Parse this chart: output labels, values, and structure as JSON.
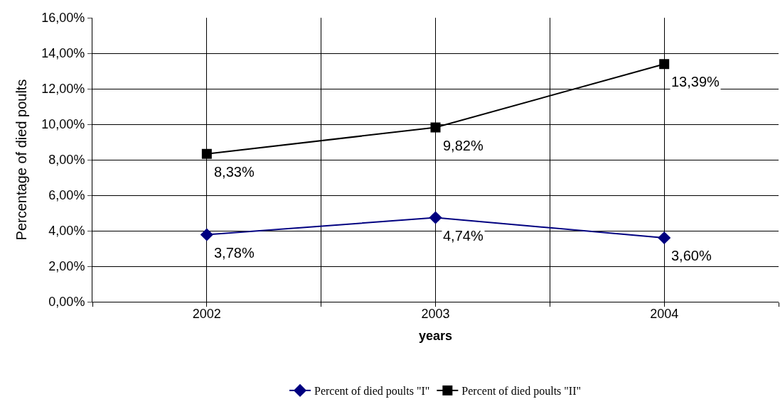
{
  "chart_data": {
    "type": "line",
    "xlabel": "years",
    "ylabel": "Percentage of died poults",
    "categories": [
      "2002",
      "2003",
      "2004"
    ],
    "series": [
      {
        "name": "Percent of died poults \"I\"",
        "color": "#000080",
        "marker": "diamond",
        "values": [
          3.78,
          4.74,
          3.6
        ],
        "value_labels": [
          "3,78%",
          "4,74%",
          "3,60%"
        ]
      },
      {
        "name": "Percent of died poults \"II\"",
        "color": "#000000",
        "marker": "square",
        "values": [
          8.33,
          9.82,
          13.39
        ],
        "value_labels": [
          "8,33%",
          "9,82%",
          "13,39%"
        ]
      }
    ],
    "ylim": [
      0,
      16
    ],
    "yticks": [
      {
        "value": 0,
        "label": "0,00%"
      },
      {
        "value": 2,
        "label": "2,00%"
      },
      {
        "value": 4,
        "label": "4,00%"
      },
      {
        "value": 6,
        "label": "6,00%"
      },
      {
        "value": 8,
        "label": "8,00%"
      },
      {
        "value": 10,
        "label": "10,00%"
      },
      {
        "value": 12,
        "label": "12,00%"
      },
      {
        "value": 14,
        "label": "14,00%"
      },
      {
        "value": 16,
        "label": "16,00%"
      }
    ],
    "grid": true,
    "legend": "bottom",
    "line_style": "solid"
  }
}
